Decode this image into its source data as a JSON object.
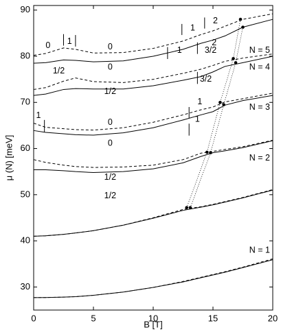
{
  "chart_data": {
    "type": "line",
    "color": "#000000",
    "xlabel": "B  [T]",
    "ylabel": "μ (N)  [meV]",
    "xlim": [
      0,
      20
    ],
    "xticks": [
      0,
      5,
      10,
      15,
      20
    ],
    "ylim": [
      25,
      91
    ],
    "yticks": [
      30,
      40,
      50,
      60,
      70,
      80,
      90
    ],
    "x": [
      0,
      1,
      2.5,
      3.5,
      5,
      7.5,
      10,
      12.5,
      14,
      15,
      16,
      17.5,
      20
    ],
    "series": [
      {
        "style": "solid",
        "values": [
          27.7,
          27.72,
          27.8,
          27.9,
          28.2,
          28.9,
          29.9,
          31.1,
          32.0,
          32.6,
          33.2,
          34.2,
          35.9
        ]
      },
      {
        "style": "dashed",
        "values": [
          27.7,
          27.72,
          27.8,
          27.9,
          28.2,
          28.9,
          29.9,
          31.2,
          32.1,
          32.7,
          33.3,
          34.3,
          36.1
        ]
      },
      {
        "style": "solid",
        "values": [
          41.0,
          41.1,
          41.4,
          41.7,
          42.2,
          43.4,
          44.9,
          46.6,
          47.3,
          47.8,
          48.4,
          49.3,
          51.0
        ]
      },
      {
        "style": "dashed",
        "values": [
          41.0,
          41.1,
          41.4,
          41.7,
          42.2,
          43.4,
          45.0,
          46.8,
          47.4,
          47.9,
          48.5,
          49.4,
          51.1
        ]
      },
      {
        "style": "solid",
        "values": [
          55.4,
          55.4,
          55.2,
          55.0,
          54.8,
          55.0,
          55.6,
          56.9,
          58.3,
          59.1,
          59.5,
          60.2,
          61.7
        ]
      },
      {
        "style": "dashed",
        "values": [
          57.6,
          57.0,
          56.4,
          56.1,
          55.9,
          56.0,
          56.4,
          57.6,
          59.0,
          59.4,
          59.8,
          60.4,
          61.8
        ]
      },
      {
        "style": "solid",
        "values": [
          63.9,
          63.5,
          63.2,
          63.0,
          62.9,
          63.4,
          64.5,
          66.2,
          67.3,
          68.0,
          69.4,
          70.4,
          71.5
        ]
      },
      {
        "style": "dashed",
        "values": [
          65.5,
          64.6,
          64.3,
          64.1,
          64.0,
          64.5,
          65.7,
          67.3,
          68.4,
          69.0,
          70.1,
          70.8,
          72.0
        ]
      },
      {
        "style": "solid",
        "values": [
          71.5,
          71.8,
          72.8,
          73.0,
          72.9,
          72.9,
          73.6,
          74.8,
          75.6,
          76.6,
          77.8,
          78.6,
          80.0
        ]
      },
      {
        "style": "dashed",
        "values": [
          72.8,
          73.2,
          74.6,
          75.3,
          74.5,
          74.3,
          75.0,
          76.3,
          77.2,
          78.0,
          78.9,
          79.6,
          80.5
        ]
      },
      {
        "style": "solid",
        "values": [
          78.5,
          78.6,
          79.2,
          79.1,
          78.8,
          79.0,
          80.0,
          81.5,
          82.8,
          83.5,
          84.4,
          86.3,
          88.0
        ]
      },
      {
        "style": "dashed",
        "values": [
          80.2,
          80.6,
          81.8,
          81.5,
          80.7,
          80.8,
          81.7,
          83.3,
          84.7,
          85.5,
          86.5,
          88.0,
          89.2
        ]
      }
    ],
    "dots": [
      {
        "x": [
          12.8,
          14.5,
          15.6,
          16.7,
          17.3
        ],
        "y": [
          47.2,
          59.2,
          70.0,
          79.5,
          88.0
        ]
      },
      {
        "x": [
          13.1,
          14.8,
          15.9,
          16.9,
          17.5
        ],
        "y": [
          47.2,
          59.1,
          69.5,
          78.6,
          86.3
        ]
      }
    ],
    "vlines": [
      {
        "x": 2.5,
        "y": [
          82.3,
          84.8
        ]
      },
      {
        "x": 3.5,
        "y": [
          82.1,
          84.6
        ]
      },
      {
        "x": 12.4,
        "y": [
          84.6,
          87.0
        ]
      },
      {
        "x": 14.3,
        "y": [
          86.0,
          88.4
        ]
      },
      {
        "x": 11.2,
        "y": [
          79.4,
          82.0
        ]
      },
      {
        "x": 13.7,
        "y": [
          80.5,
          83.0
        ]
      },
      {
        "x": 13.7,
        "y": [
          74.0,
          76.6
        ]
      },
      {
        "x": 0.9,
        "y": [
          63.6,
          66.2
        ]
      },
      {
        "x": 13.0,
        "y": [
          66.6,
          69.0
        ]
      },
      {
        "x": 13.0,
        "y": [
          62.8,
          65.4
        ]
      }
    ],
    "annotations": [
      {
        "text": "0",
        "x": 1.2,
        "y": 82.3
      },
      {
        "text": "1",
        "x": 3.0,
        "y": 83.2
      },
      {
        "text": "0",
        "x": 6.4,
        "y": 82.0
      },
      {
        "text": "1",
        "x": 13.3,
        "y": 86.1
      },
      {
        "text": "2",
        "x": 15.2,
        "y": 87.6
      },
      {
        "text": "1",
        "x": 12.2,
        "y": 81.2
      },
      {
        "text": "2",
        "x": 15.1,
        "y": 82.9
      },
      {
        "text": "0",
        "x": 6.4,
        "y": 77.6
      },
      {
        "text": "1/2",
        "x": 2.1,
        "y": 76.8
      },
      {
        "text": "3/2",
        "x": 14.8,
        "y": 81.2
      },
      {
        "text": "3/2",
        "x": 14.4,
        "y": 75.0
      },
      {
        "text": "1/2",
        "x": 6.4,
        "y": 72.3
      },
      {
        "text": "1",
        "x": 0.4,
        "y": 67.1
      },
      {
        "text": "0",
        "x": 6.4,
        "y": 65.6
      },
      {
        "text": "1",
        "x": 13.9,
        "y": 70.1
      },
      {
        "text": "1",
        "x": 13.7,
        "y": 66.3
      },
      {
        "text": "0",
        "x": 6.4,
        "y": 61.1
      },
      {
        "text": "1/2",
        "x": 6.4,
        "y": 53.7
      },
      {
        "text": "1/2",
        "x": 6.4,
        "y": 49.7
      },
      {
        "text": "N = 5",
        "x": 18.9,
        "y": 81.2
      },
      {
        "text": "N = 4",
        "x": 18.9,
        "y": 77.6
      },
      {
        "text": "N = 3",
        "x": 18.9,
        "y": 68.9
      },
      {
        "text": "N = 2",
        "x": 18.9,
        "y": 57.9
      },
      {
        "text": "N = 1",
        "x": 18.9,
        "y": 37.9
      }
    ]
  }
}
